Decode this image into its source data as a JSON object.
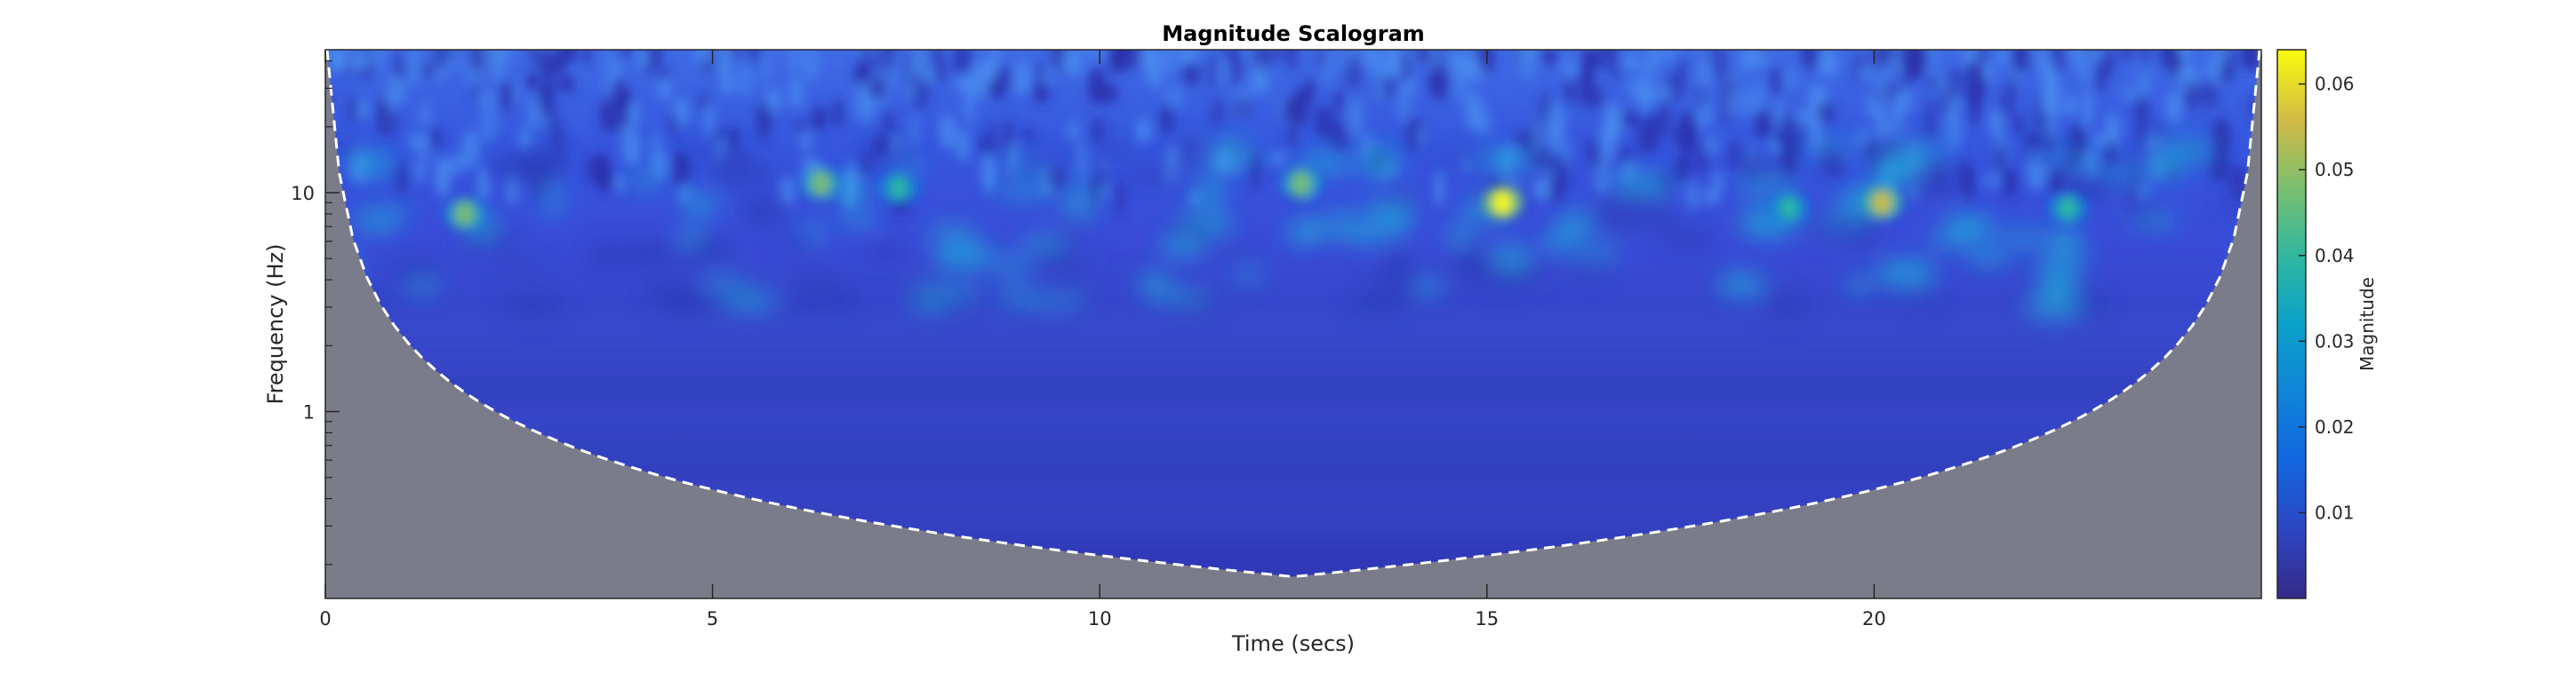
{
  "chart_data": {
    "type": "heatmap",
    "title": "Magnitude Scalogram",
    "xlabel": "Time (secs)",
    "ylabel": "Frequency (Hz)",
    "colorbar_label": "Magnitude",
    "xlim": [
      0,
      25
    ],
    "ylim": [
      0.14,
      45
    ],
    "yscale": "log",
    "x_ticks": [
      0,
      5,
      10,
      15,
      20
    ],
    "x_tick_labels": [
      "0",
      "5",
      "10",
      "15",
      "20"
    ],
    "y_ticks": [
      1,
      10
    ],
    "y_tick_labels": [
      "1",
      "10"
    ],
    "colorbar_ticks": [
      0.01,
      0.02,
      0.03,
      0.04,
      0.05,
      0.06
    ],
    "colorbar_tick_labels": [
      "0.01",
      "0.02",
      "0.03",
      "0.04",
      "0.05",
      "0.06"
    ],
    "clim": [
      0,
      0.064
    ],
    "colormap": "parula",
    "cone_of_influence": {
      "style": "dashed",
      "color": "#ffffff",
      "shaded_color": "#7b7c8a"
    },
    "hotspots": [
      {
        "time": 1.8,
        "freq": 8.0,
        "magnitude": 0.045
      },
      {
        "time": 6.4,
        "freq": 11.0,
        "magnitude": 0.048
      },
      {
        "time": 7.4,
        "freq": 10.5,
        "magnitude": 0.04
      },
      {
        "time": 12.6,
        "freq": 11.0,
        "magnitude": 0.045
      },
      {
        "time": 15.2,
        "freq": 9.0,
        "magnitude": 0.063
      },
      {
        "time": 18.9,
        "freq": 8.5,
        "magnitude": 0.04
      },
      {
        "time": 20.1,
        "freq": 9.0,
        "magnitude": 0.052
      },
      {
        "time": 22.5,
        "freq": 8.5,
        "magnitude": 0.04
      }
    ],
    "grid": false
  }
}
